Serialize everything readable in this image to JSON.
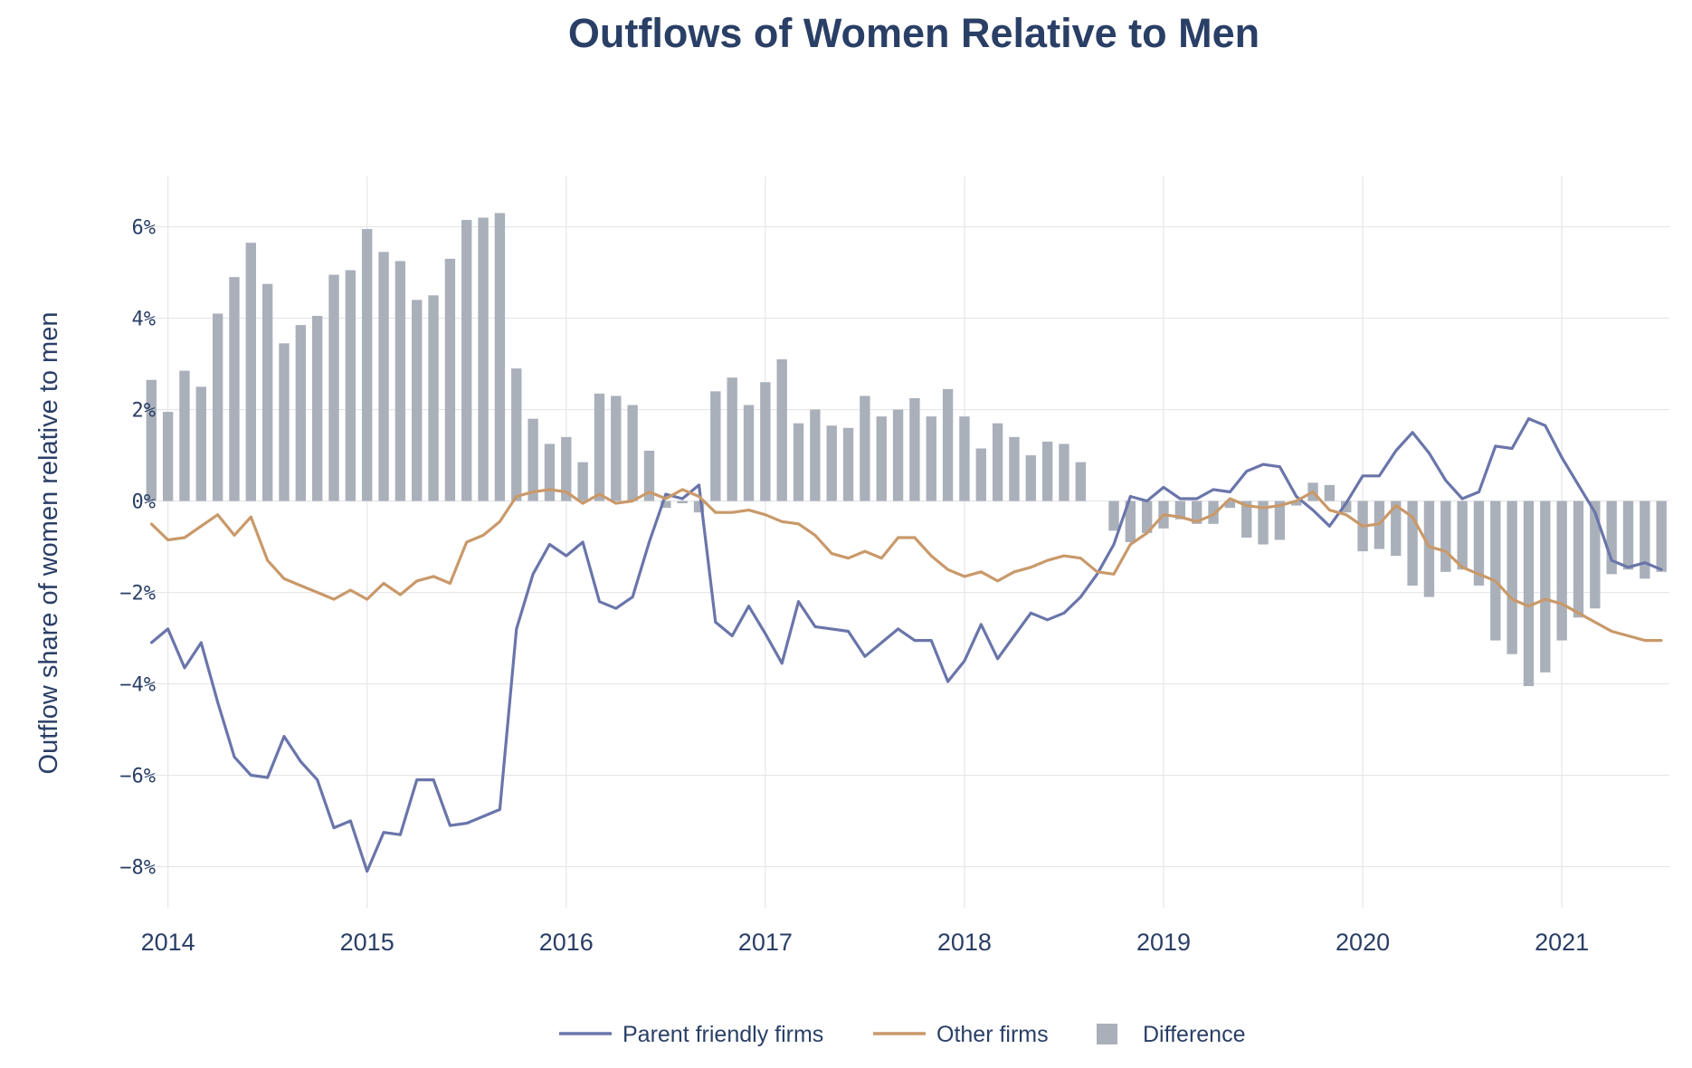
{
  "chart_data": {
    "type": "bar+line",
    "title": "Outflows of Women Relative to Men",
    "xlabel": "",
    "ylabel": "Outflow share of women relative to men",
    "ylim": [
      -8.9,
      7.1
    ],
    "yticks": [
      6,
      4,
      2,
      0,
      -2,
      -4,
      -6,
      -8
    ],
    "ytick_labels": [
      "6%",
      "4%",
      "2%",
      "0%",
      "−2%",
      "−4%",
      "−6%",
      "−8%"
    ],
    "xlim": [
      2013.92,
      2021.54
    ],
    "xticks": [
      2014,
      2015,
      2016,
      2017,
      2018,
      2019,
      2020,
      2021
    ],
    "xtick_labels": [
      "2014",
      "2015",
      "2016",
      "2017",
      "2018",
      "2019",
      "2020",
      "2021"
    ],
    "x_start": 2013.9167,
    "x_step_months": 1,
    "grid": true,
    "legend_position": "bottom-center",
    "colors": {
      "parent_friendly": "#6a75aa",
      "other": "#c9996a",
      "difference": "#aab0ba",
      "title": "#2a3f66"
    },
    "series": [
      {
        "name": "Parent friendly firms",
        "kind": "line",
        "values": [
          -3.1,
          -2.8,
          -3.65,
          -3.1,
          -4.4,
          -5.6,
          -6.0,
          -6.05,
          -5.15,
          -5.7,
          -6.1,
          -7.15,
          -7.0,
          -8.1,
          -7.25,
          -7.3,
          -6.1,
          -6.1,
          -7.1,
          -7.05,
          -6.9,
          -6.75,
          -2.8,
          -1.6,
          -0.95,
          -1.2,
          -0.9,
          -2.2,
          -2.35,
          -2.1,
          -0.9,
          0.15,
          0.05,
          0.35,
          -2.65,
          -2.95,
          -2.3,
          -2.9,
          -3.55,
          -2.2,
          -2.75,
          -2.8,
          -2.85,
          -3.4,
          -3.1,
          -2.8,
          -3.05,
          -3.05,
          -3.95,
          -3.5,
          -2.7,
          -3.45,
          -2.95,
          -2.45,
          -2.6,
          -2.45,
          -2.1,
          -1.6,
          -0.95,
          0.1,
          0.0,
          0.3,
          0.05,
          0.05,
          0.25,
          0.2,
          0.65,
          0.8,
          0.75,
          0.1,
          -0.2,
          -0.55,
          -0.05,
          0.55,
          0.55,
          1.1,
          1.5,
          1.05,
          0.45,
          0.05,
          0.2,
          1.2,
          1.15,
          1.8,
          1.65,
          0.95,
          0.35,
          -0.25,
          -1.3,
          -1.45,
          -1.35,
          -1.5
        ]
      },
      {
        "name": "Other firms",
        "kind": "line",
        "values": [
          -0.5,
          -0.85,
          -0.8,
          -0.55,
          -0.3,
          -0.75,
          -0.35,
          -1.3,
          -1.7,
          -1.85,
          -2.0,
          -2.15,
          -1.95,
          -2.15,
          -1.8,
          -2.05,
          -1.75,
          -1.65,
          -1.8,
          -0.9,
          -0.75,
          -0.45,
          0.1,
          0.2,
          0.25,
          0.2,
          -0.05,
          0.15,
          -0.05,
          0.0,
          0.2,
          0.05,
          0.25,
          0.1,
          -0.25,
          -0.25,
          -0.2,
          -0.3,
          -0.45,
          -0.5,
          -0.75,
          -1.15,
          -1.25,
          -1.1,
          -1.25,
          -0.8,
          -0.8,
          -1.2,
          -1.5,
          -1.65,
          -1.55,
          -1.75,
          -1.55,
          -1.45,
          -1.3,
          -1.2,
          -1.25,
          -1.55,
          -1.6,
          -0.95,
          -0.7,
          -0.3,
          -0.35,
          -0.45,
          -0.3,
          0.05,
          -0.1,
          -0.15,
          -0.1,
          0.0,
          0.2,
          -0.2,
          -0.3,
          -0.55,
          -0.5,
          -0.1,
          -0.35,
          -1.0,
          -1.1,
          -1.45,
          -1.6,
          -1.75,
          -2.15,
          -2.3,
          -2.15,
          -2.25,
          -2.45,
          -2.65,
          -2.85,
          -2.95,
          -3.05,
          -3.05
        ]
      },
      {
        "name": "Difference",
        "kind": "bar",
        "values": [
          2.65,
          1.95,
          2.85,
          2.5,
          4.1,
          4.9,
          5.65,
          4.75,
          3.45,
          3.85,
          4.05,
          4.95,
          5.05,
          5.95,
          5.45,
          5.25,
          4.4,
          4.5,
          5.3,
          6.15,
          6.2,
          6.3,
          2.9,
          1.8,
          1.25,
          1.4,
          0.85,
          2.35,
          2.3,
          2.1,
          1.1,
          -0.15,
          -0.05,
          -0.25,
          2.4,
          2.7,
          2.1,
          2.6,
          3.1,
          1.7,
          2.0,
          1.65,
          1.6,
          2.3,
          1.85,
          2.0,
          2.25,
          1.85,
          2.45,
          1.85,
          1.15,
          1.7,
          1.4,
          1.0,
          1.3,
          1.25,
          0.85,
          0.0,
          -0.65,
          -0.9,
          -0.7,
          -0.6,
          -0.4,
          -0.5,
          -0.5,
          -0.15,
          -0.8,
          -0.95,
          -0.85,
          -0.1,
          0.4,
          0.35,
          -0.25,
          -1.1,
          -1.05,
          -1.2,
          -1.85,
          -2.1,
          -1.55,
          -1.5,
          -1.85,
          -3.05,
          -3.35,
          -4.05,
          -3.75,
          -3.05,
          -2.55,
          -2.35,
          -1.6,
          -1.5,
          -1.7,
          -1.55
        ]
      }
    ]
  }
}
